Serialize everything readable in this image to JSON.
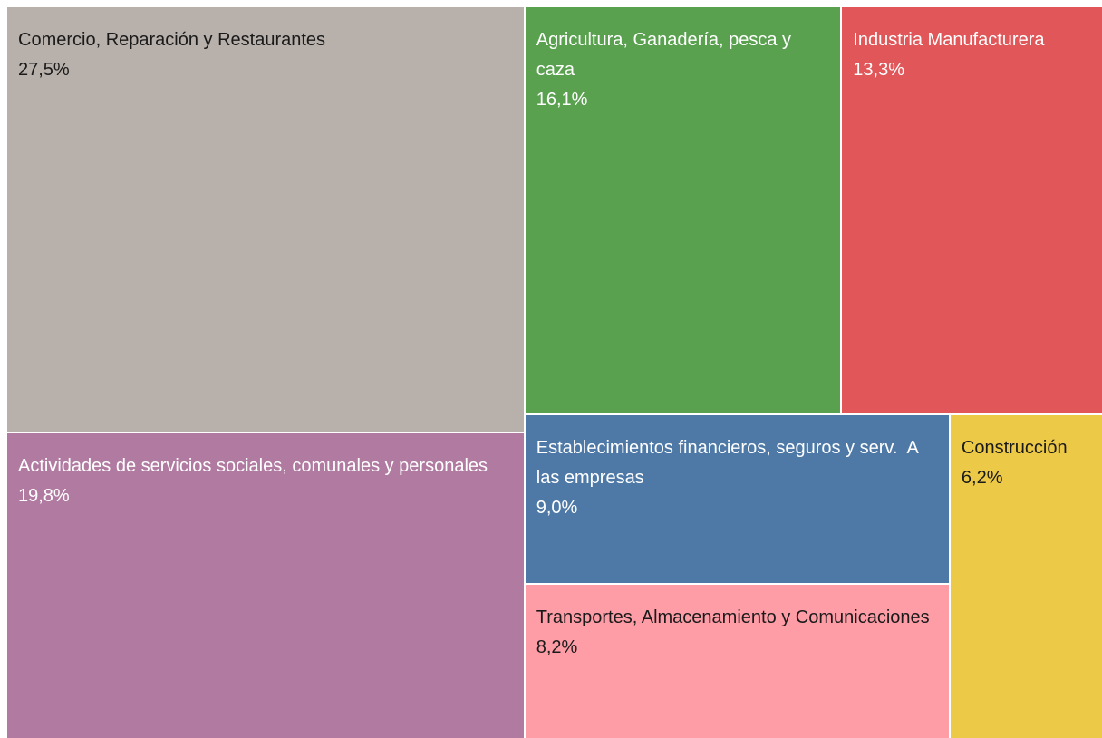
{
  "chart_data": {
    "type": "treemap",
    "categories": [
      "Comercio, Reparación y Restaurantes",
      "Agricultura, Ganadería, pesca y caza",
      "Industria Manufacturera",
      "Actividades de servicios sociales, comunales y personales",
      "Establecimientos financieros, seguros y serv.  A las empresas",
      "Construcción",
      "Transportes, Almacenamiento y Comunicaciones"
    ],
    "values": [
      27.5,
      16.1,
      13.3,
      19.8,
      9.0,
      6.2,
      8.2
    ],
    "value_labels": [
      "27,5%",
      "16,1%",
      "13,3%",
      "19,8%",
      "9,0%",
      "6,2%",
      "8,2%"
    ],
    "colors": [
      "#b8b0aa",
      "#59a14f",
      "#e15759",
      "#b07aa1",
      "#4e79a7",
      "#edc948",
      "#ff9da7"
    ]
  }
}
